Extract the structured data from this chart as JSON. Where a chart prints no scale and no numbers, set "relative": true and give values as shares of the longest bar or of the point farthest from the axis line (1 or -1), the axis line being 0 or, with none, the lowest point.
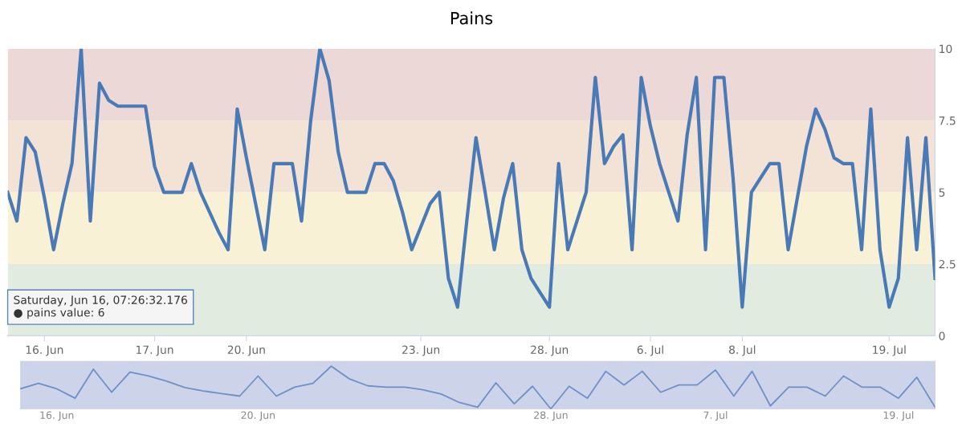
{
  "chart_data": [
    {
      "type": "line",
      "title": "Pains",
      "ylim": [
        0,
        10
      ],
      "categories": [
        null,
        null,
        null,
        null,
        "16. Jun",
        null,
        null,
        null,
        null,
        null,
        null,
        null,
        null,
        null,
        null,
        null,
        "17. Jun",
        null,
        null,
        null,
        null,
        null,
        null,
        null,
        null,
        null,
        "20. Jun",
        null,
        null,
        null,
        null,
        null,
        null,
        null,
        null,
        null,
        null,
        null,
        null,
        null,
        null,
        null,
        null,
        null,
        null,
        "23. Jun",
        null,
        null,
        null,
        null,
        null,
        null,
        null,
        null,
        null,
        null,
        null,
        null,
        null,
        "28. Jun",
        null,
        null,
        null,
        null,
        null,
        null,
        null,
        null,
        null,
        null,
        "6. Jul",
        null,
        null,
        null,
        null,
        null,
        null,
        null,
        null,
        null,
        "8. Jul",
        null,
        null,
        null,
        null,
        null,
        null,
        null,
        null,
        null,
        null,
        null,
        null,
        null,
        null,
        null,
        "19. Jul",
        null,
        null,
        null,
        null,
        null
      ],
      "yticks": [
        0,
        2.5,
        5,
        7.5,
        10
      ],
      "legend": false,
      "marker": "none",
      "line_style": "solid",
      "bands": [
        {
          "axis": "y",
          "from": 0,
          "to": 2.5,
          "color": "#e2ebdf"
        },
        {
          "axis": "y",
          "from": 2.5,
          "to": 5,
          "color": "#f8f1d5"
        },
        {
          "axis": "y",
          "from": 5,
          "to": 7.5,
          "color": "#f3e3d6"
        },
        {
          "axis": "y",
          "from": 7.5,
          "to": 10,
          "color": "#ecd9d7"
        }
      ],
      "annotations": [
        "Saturday, Jun 16, 07:26:32.176\n● pains value: 6"
      ],
      "series": [
        {
          "color": "#4a7ab5",
          "values": [
            5,
            4,
            6.9,
            6.4,
            4.8,
            3,
            4.6,
            6,
            10,
            4,
            8.8,
            8.2,
            8,
            8,
            8,
            8,
            5.9,
            5,
            5,
            5,
            6,
            5,
            4.3,
            3.6,
            3,
            7.9,
            6.2,
            4.6,
            3,
            6,
            6,
            6,
            4,
            7.5,
            10,
            8.9,
            6.4,
            5,
            5,
            5,
            6,
            6,
            5.4,
            4.3,
            3,
            3.8,
            4.6,
            5,
            2,
            1,
            4,
            6.9,
            5,
            3,
            4.8,
            6,
            3,
            2,
            1.5,
            1,
            6,
            3,
            4,
            5,
            9,
            6,
            6.6,
            7,
            3,
            9,
            7.3,
            6,
            5,
            4,
            7,
            9,
            3,
            9,
            9,
            5.5,
            1,
            5,
            5.5,
            6,
            6,
            3,
            4.8,
            6.6,
            7.9,
            7.2,
            6.2,
            6,
            6,
            3,
            7.9,
            3,
            1,
            2,
            6.9,
            3,
            6.9,
            2
          ]
        }
      ]
    },
    {
      "type": "line",
      "relative": true,
      "categories": [
        null,
        null,
        "16. Jun",
        null,
        null,
        null,
        null,
        null,
        null,
        null,
        null,
        null,
        null,
        "20. Jun",
        null,
        null,
        null,
        null,
        null,
        null,
        null,
        null,
        null,
        null,
        null,
        null,
        null,
        null,
        null,
        "28. Jun",
        null,
        null,
        null,
        null,
        null,
        null,
        null,
        null,
        "7. Jul",
        null,
        null,
        null,
        null,
        null,
        null,
        null,
        null,
        null,
        "19. Jul",
        null,
        null
      ],
      "series": [
        {
          "color": "#6f8fc7",
          "values": [
            0.47,
            0.6,
            0.47,
            0.25,
            0.93,
            0.39,
            0.86,
            0.77,
            0.65,
            0.5,
            0.42,
            0.36,
            0.3,
            0.77,
            0.3,
            0.51,
            0.6,
            1,
            0.7,
            0.54,
            0.51,
            0.51,
            0.45,
            0.35,
            0.15,
            0.04,
            0.61,
            0.12,
            0.53,
            0,
            0.53,
            0.25,
            0.88,
            0.56,
            0.88,
            0.39,
            0.56,
            0.56,
            0.91,
            0.3,
            0.88,
            0.07,
            0.51,
            0.51,
            0.3,
            0.77,
            0.51,
            0.51,
            0.25,
            0.74,
            0.04
          ]
        }
      ]
    }
  ]
}
